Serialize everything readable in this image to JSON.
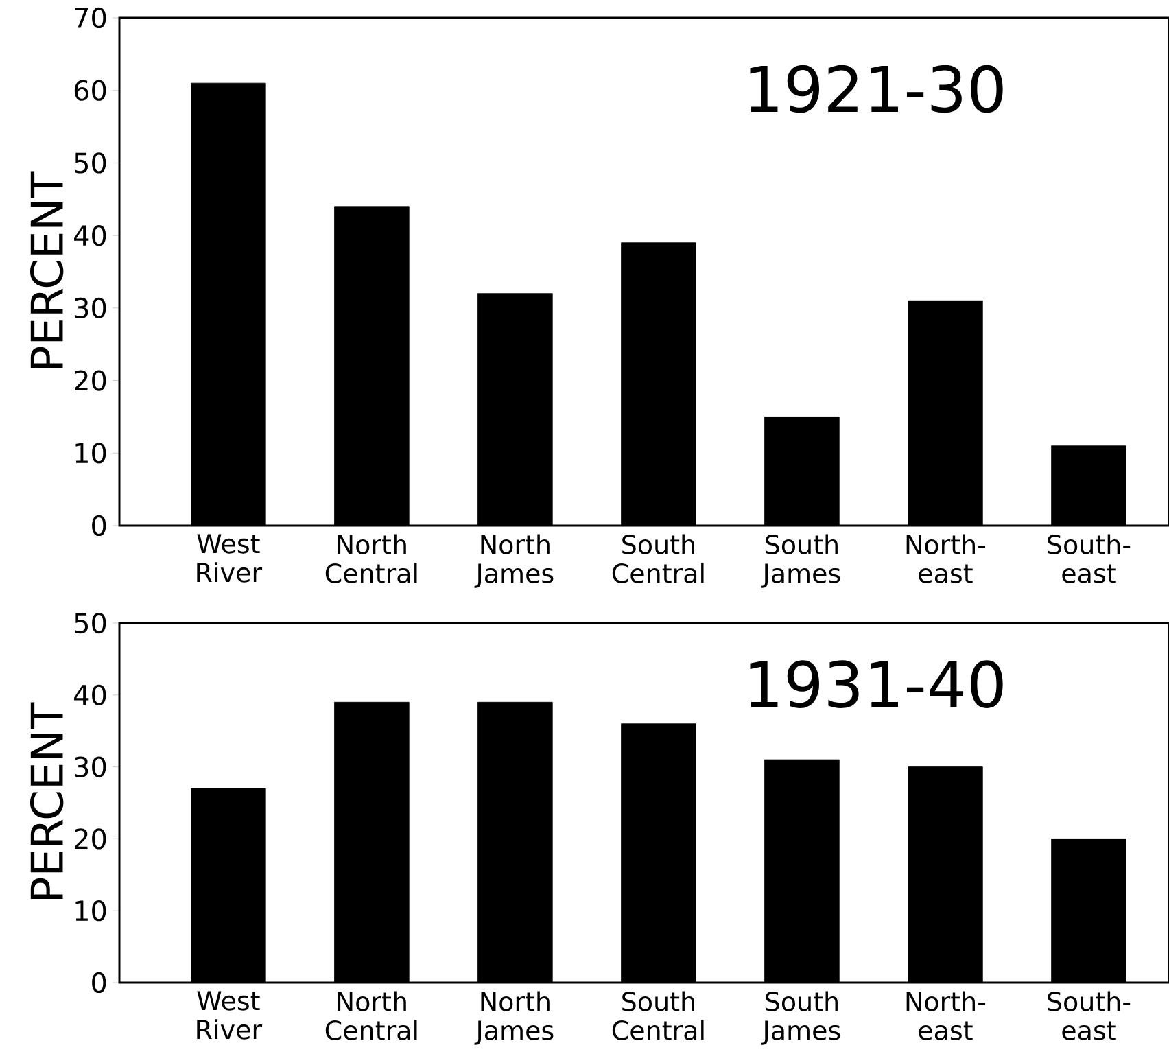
{
  "chart_data": [
    {
      "type": "bar",
      "categories": [
        "West River",
        "North Central",
        "North James",
        "South Central",
        "South James",
        "North-east",
        "South-east"
      ],
      "values": [
        61,
        44,
        32,
        39,
        15,
        31,
        11
      ],
      "color": "#000000",
      "ylabel": "PERCENT",
      "ylim": [
        0,
        70
      ],
      "yticks": [
        0,
        10,
        20,
        30,
        40,
        50,
        60,
        70
      ],
      "annotations": [
        "1921-30"
      ]
    },
    {
      "type": "bar",
      "categories": [
        "West River",
        "North Central",
        "North James",
        "South Central",
        "South James",
        "North-east",
        "South-east"
      ],
      "values": [
        27,
        39,
        39,
        36,
        31,
        30,
        20
      ],
      "color": "#000000",
      "ylabel": "PERCENT",
      "ylim": [
        0,
        50
      ],
      "yticks": [
        0,
        10,
        20,
        30,
        40,
        50
      ],
      "annotations": [
        "1931-40"
      ]
    }
  ]
}
